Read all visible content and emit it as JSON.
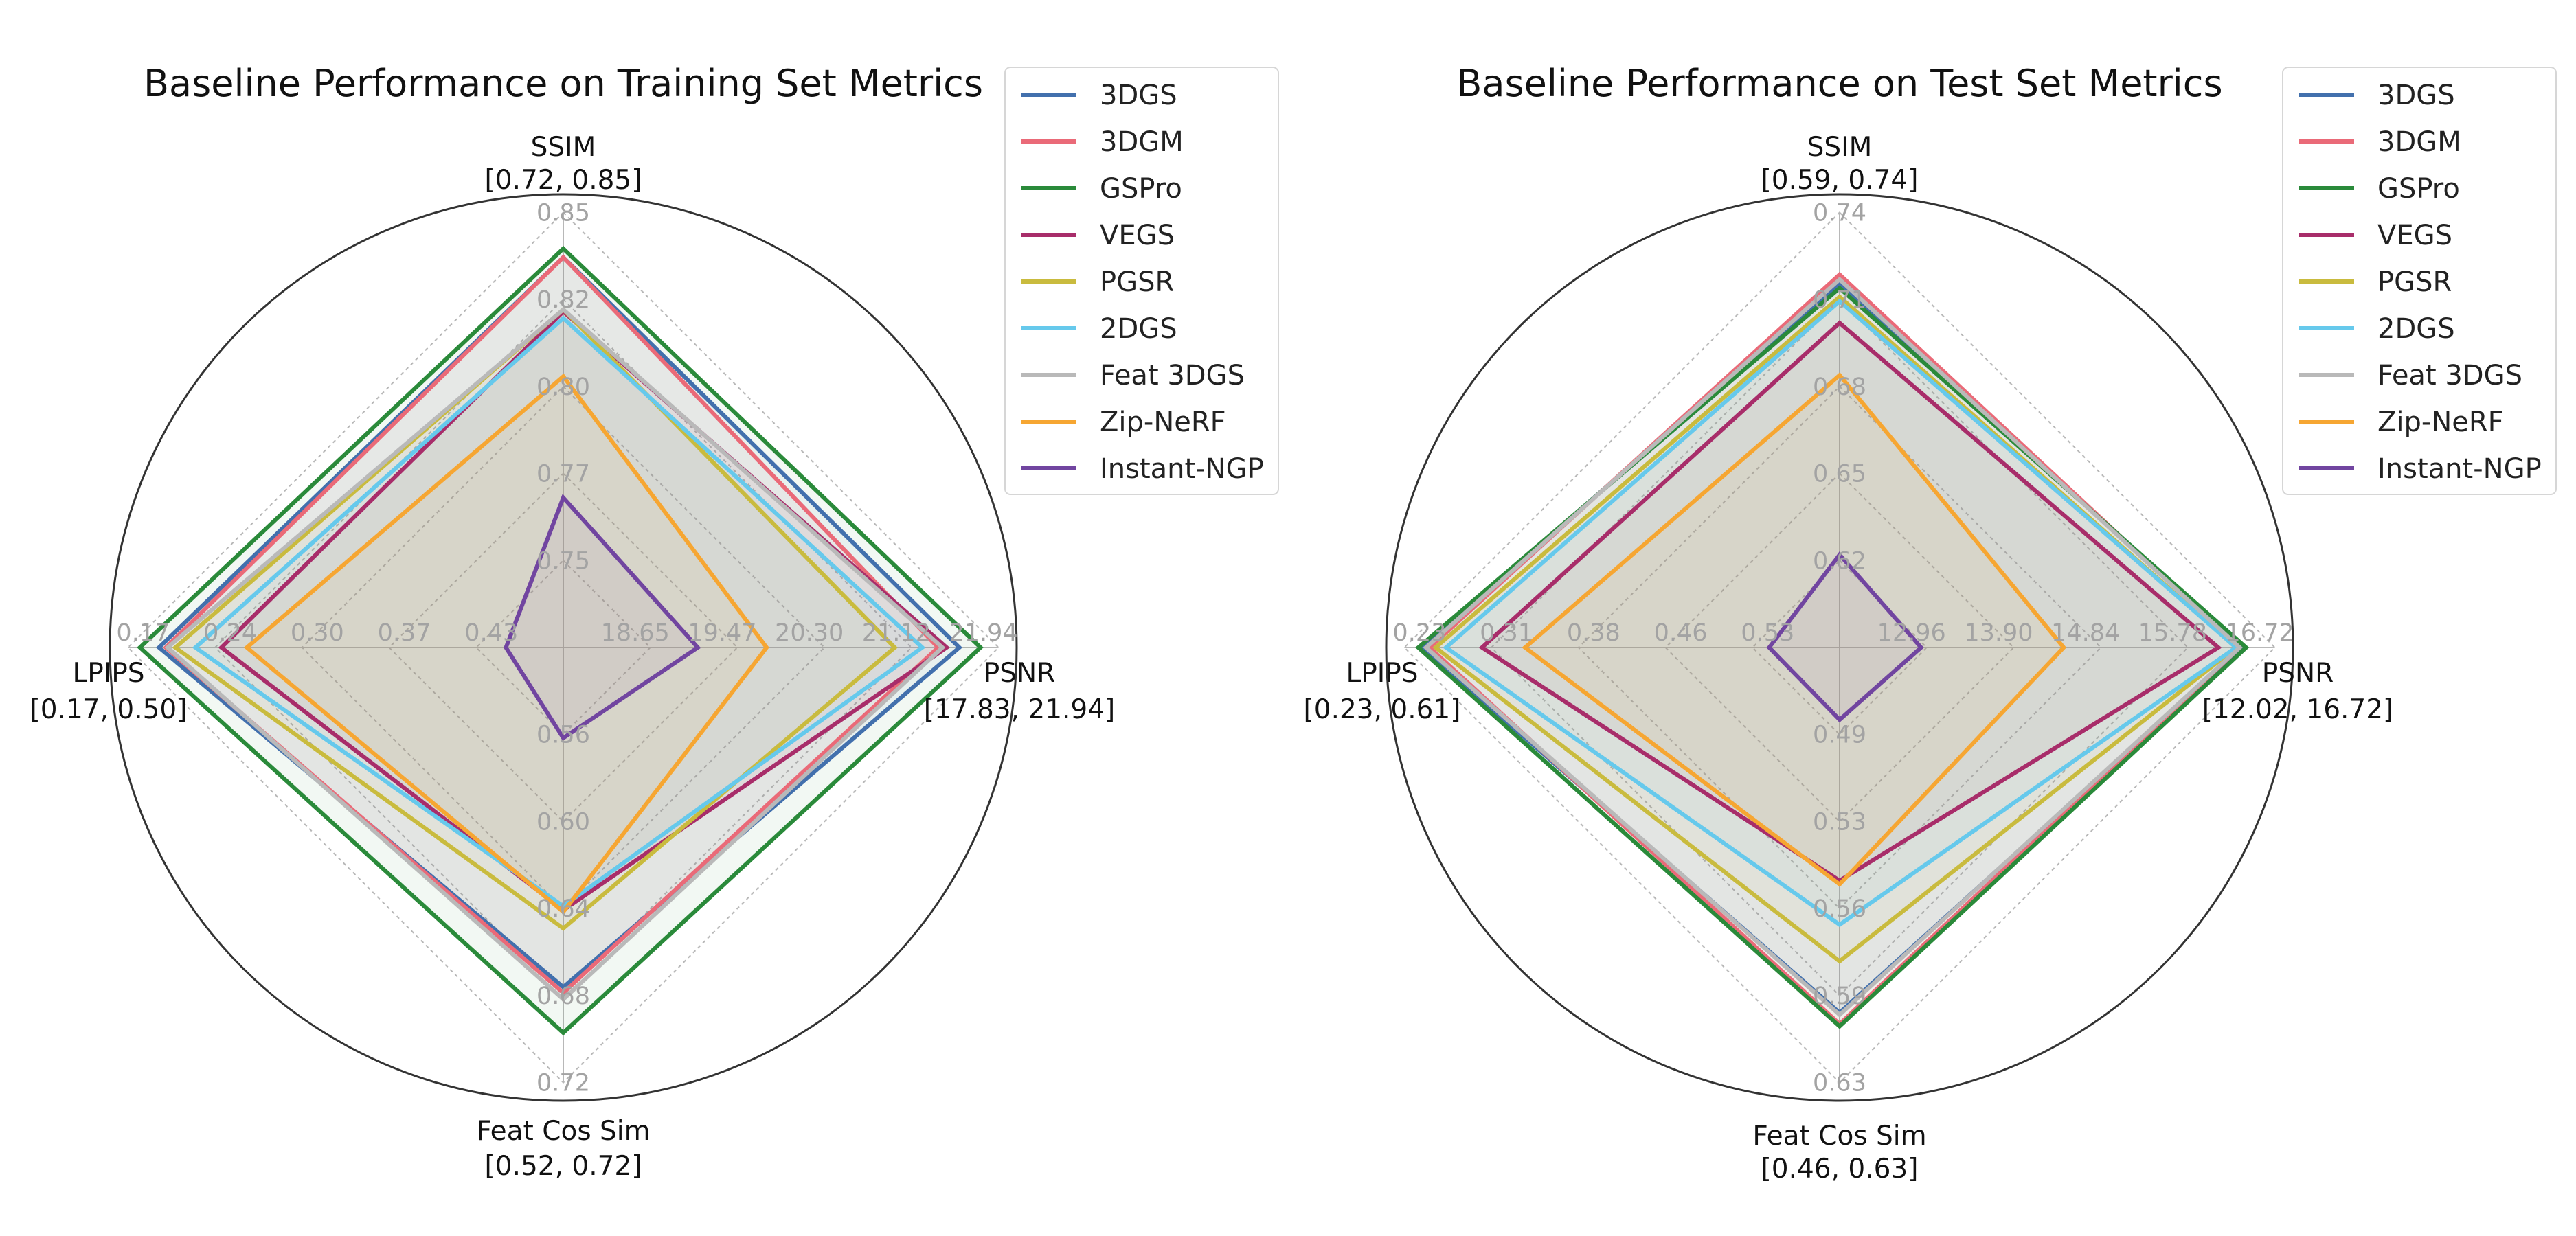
{
  "colors": {
    "3DGS": "#4270ad",
    "3DGM": "#ea6a78",
    "GSPro": "#2a8a3a",
    "VEGS": "#a82d6a",
    "PGSR": "#c9bb3e",
    "2DGS": "#66c9ec",
    "Feat 3DGS": "#b9b9b9",
    "Zip-NeRF": "#f6a632",
    "Instant-NGP": "#7145a0"
  },
  "chart_data": [
    {
      "type": "radar",
      "title": "Baseline Performance on Training Set Metrics",
      "axes": [
        {
          "name": "SSIM",
          "range_label": "[0.72, 0.85]",
          "range": [
            0.72,
            0.85
          ],
          "ticks": [
            "0.75",
            "0.77",
            "0.80",
            "0.82",
            "0.85"
          ]
        },
        {
          "name": "PSNR",
          "range_label": "[17.83, 21.94]",
          "range": [
            17.83,
            21.94
          ],
          "ticks": [
            "18.65",
            "19.47",
            "20.30",
            "21.12",
            "21.94"
          ]
        },
        {
          "name": "Feat Cos Sim",
          "range_label": "[0.52, 0.72]",
          "range": [
            0.52,
            0.72
          ],
          "ticks": [
            "0.56",
            "0.60",
            "0.64",
            "0.68",
            "0.72"
          ]
        },
        {
          "name": "LPIPS",
          "range_label": "[0.17, 0.50]",
          "range": [
            0.5,
            0.17
          ],
          "ticks": [
            "0.43",
            "0.37",
            "0.30",
            "0.24",
            "0.17"
          ]
        }
      ],
      "series": [
        {
          "name": "3DGS",
          "values": [
            0.8366,
            21.57,
            0.6761,
            0.1935
          ]
        },
        {
          "name": "3DGM",
          "values": [
            0.8366,
            21.37,
            0.6787,
            0.1987
          ]
        },
        {
          "name": "GSPro",
          "values": [
            0.8392,
            21.77,
            0.6971,
            0.179
          ]
        },
        {
          "name": "VEGS",
          "values": [
            0.8204,
            21.45,
            0.6407,
            0.2408
          ]
        },
        {
          "name": "PGSR",
          "values": [
            0.821,
            20.96,
            0.6491,
            0.2059
          ]
        },
        {
          "name": "2DGS",
          "values": [
            0.8184,
            21.22,
            0.6389,
            0.2211
          ]
        },
        {
          "name": "Feat 3DGS",
          "values": [
            0.821,
            21.41,
            0.6817,
            0.2
          ]
        },
        {
          "name": "Zip-NeRF",
          "values": [
            0.801,
            19.75,
            0.6415,
            0.2601
          ]
        },
        {
          "name": "Instant-NGP",
          "values": [
            0.7648,
            19.1,
            0.5616,
            0.4565
          ]
        }
      ]
    },
    {
      "type": "radar",
      "title": "Baseline Performance on Test Set Metrics",
      "axes": [
        {
          "name": "SSIM",
          "range_label": "[0.59, 0.74]",
          "range": [
            0.59,
            0.74
          ],
          "ticks": [
            "0.62",
            "0.65",
            "0.68",
            "0.71",
            "0.74"
          ]
        },
        {
          "name": "PSNR",
          "range_label": "[12.02, 16.72]",
          "range": [
            12.02,
            16.72
          ],
          "ticks": [
            "12.96",
            "13.90",
            "14.84",
            "15.78",
            "16.72"
          ]
        },
        {
          "name": "Feat Cos Sim",
          "range_label": "[0.46, 0.63]",
          "range": [
            0.46,
            0.63
          ],
          "ticks": [
            "0.49",
            "0.53",
            "0.56",
            "0.59",
            "0.63"
          ]
        },
        {
          "name": "LPIPS",
          "range_label": "[0.23, 0.61]",
          "range": [
            0.61,
            0.23
          ],
          "ticks": [
            "0.53",
            "0.46",
            "0.38",
            "0.31",
            "0.23"
          ]
        }
      ],
      "series": [
        {
          "name": "3DGS",
          "values": [
            0.7154,
            16.38,
            0.6027,
            0.2452
          ]
        },
        {
          "name": "3DGM",
          "values": [
            0.7186,
            16.34,
            0.6071,
            0.252
          ]
        },
        {
          "name": "GSPro",
          "values": [
            0.7139,
            16.41,
            0.608,
            0.2422
          ]
        },
        {
          "name": "VEGS",
          "values": [
            0.7019,
            16.11,
            0.5511,
            0.2978
          ]
        },
        {
          "name": "PGSR",
          "values": [
            0.7109,
            16.3,
            0.5826,
            0.2573
          ]
        },
        {
          "name": "2DGS",
          "values": [
            0.7094,
            16.3,
            0.5683,
            0.2664
          ]
        },
        {
          "name": "Feat 3DGS",
          "values": [
            0.7169,
            16.34,
            0.6035,
            0.2489
          ]
        },
        {
          "name": "Zip-NeRF",
          "values": [
            0.6839,
            14.44,
            0.5525,
            0.3354
          ]
        },
        {
          "name": "Instant-NGP",
          "values": [
            0.622,
            12.9,
            0.4882,
            0.5485
          ]
        }
      ]
    }
  ]
}
